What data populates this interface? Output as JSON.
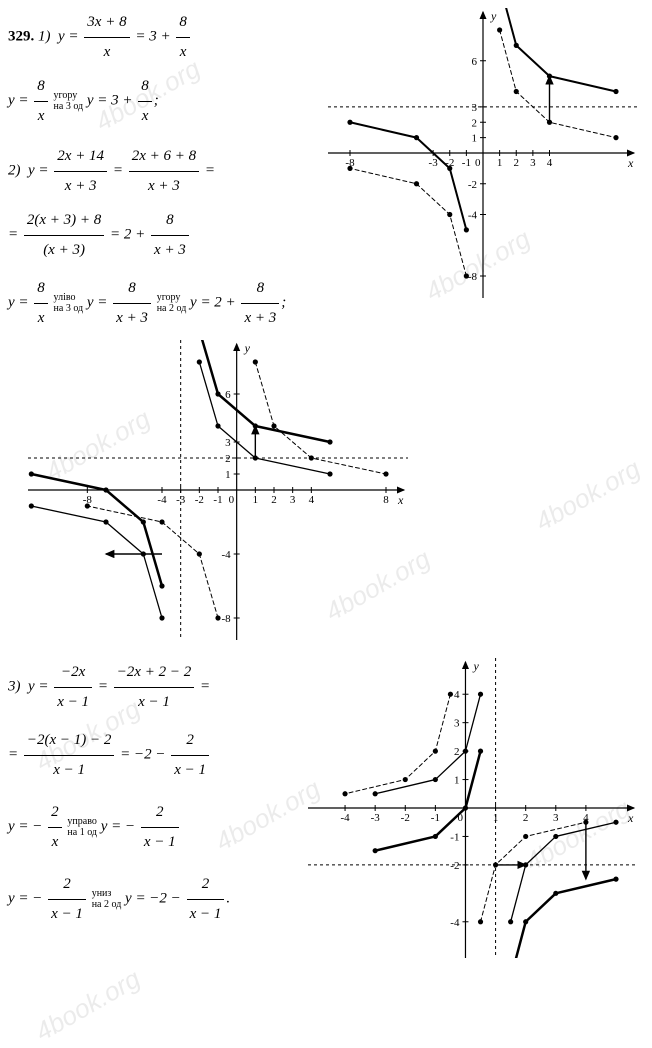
{
  "problem_number": "329.",
  "p1": {
    "line1_a": "1)",
    "eq1_lhs_y": "y",
    "eq1_frac1_num": "3x + 8",
    "eq1_frac1_den": "x",
    "eq1_mid": "= 3 +",
    "eq1_frac2_num": "8",
    "eq1_frac2_den": "x",
    "line2_y": "y =",
    "line2_f1_num": "8",
    "line2_f1_den": "x",
    "line2_annot": "угору\nна 3 од",
    "line2_rhs_y": "y = 3 +",
    "line2_f2_num": "8",
    "line2_f2_den": "x",
    "semicolon": ";"
  },
  "p2": {
    "label": "2)",
    "eq_y": "y =",
    "f1_num": "2x + 14",
    "f1_den": "x + 3",
    "eq_eq": "=",
    "f2_num": "2x + 6 + 8",
    "f2_den": "x + 3",
    "line2_eq": "=",
    "f3_num": "2(x + 3) + 8",
    "f3_den": "(x + 3)",
    "line2_rhs": "= 2 +",
    "f4_num": "8",
    "f4_den": "x + 3",
    "chain_y1": "y =",
    "c_f1_num": "8",
    "c_f1_den": "x",
    "c_annot1": "уліво\nна 3 од",
    "chain_y2": "y =",
    "c_f2_num": "8",
    "c_f2_den": "x + 3",
    "c_annot2": "угору\nна 2 од",
    "chain_y3": "y = 2 +",
    "c_f3_num": "8",
    "c_f3_den": "x + 3",
    "semicolon": ";"
  },
  "p3": {
    "label": "3)",
    "eq_y": "y =",
    "f1_num": "−2x",
    "f1_den": "x − 1",
    "eq_eq": "=",
    "f2_num": "−2x + 2 − 2",
    "f2_den": "x − 1",
    "line2_eq": "=",
    "f3_num": "−2(x − 1) − 2",
    "f3_den": "x − 1",
    "line2_rhs": "= −2 −",
    "f4_num": "2",
    "f4_den": "x − 1",
    "chain_y1": "y = −",
    "c_f1_num": "2",
    "c_f1_den": "x",
    "c_annot1": "управо\nна 1 од",
    "chain_y2": "y = −",
    "c_f2_num": "2",
    "c_f2_den": "x − 1",
    "chain_y3": "y = −",
    "c2_f1_num": "2",
    "c2_f1_den": "x − 1",
    "c_annot2": "униз\nна 2 од",
    "chain_y4": "y = −2 −",
    "c2_f2_num": "2",
    "c2_f2_den": "x − 1",
    "period": "."
  },
  "chart1": {
    "type": "hyperbola-shift",
    "xlim": [
      -8,
      8
    ],
    "ylim": [
      -8,
      8
    ],
    "xticks": [
      -8,
      -3,
      -2,
      -1,
      1,
      2,
      3,
      4
    ],
    "yticks": [
      -8,
      -4,
      -2,
      1,
      2,
      3,
      6
    ],
    "axis_color": "#000000",
    "grid_color": "#e5e5e5",
    "background_color": "#ffffff",
    "asymptote_h_y": 3,
    "asymptote_style": "dashed",
    "curves": [
      {
        "name": "8/x",
        "style": "dashed",
        "color": "#000000",
        "width": 1,
        "branches": [
          [
            [
              1,
              8
            ],
            [
              2,
              4
            ],
            [
              4,
              2
            ],
            [
              8,
              1
            ]
          ],
          [
            [
              -1,
              -8
            ],
            [
              -2,
              -4
            ],
            [
              -4,
              -2
            ],
            [
              -8,
              -1
            ]
          ]
        ],
        "markers": true
      },
      {
        "name": "3+8/x",
        "style": "solid",
        "color": "#000000",
        "width": 2,
        "branches": [
          [
            [
              1,
              11
            ],
            [
              2,
              7
            ],
            [
              4,
              5
            ],
            [
              8,
              4
            ]
          ],
          [
            [
              -1,
              -5
            ],
            [
              -2,
              -1
            ],
            [
              -4,
              1
            ],
            [
              -8,
              2
            ]
          ]
        ],
        "markers": true
      }
    ],
    "arrows": [
      {
        "from": [
          4,
          2
        ],
        "to": [
          4,
          5
        ]
      }
    ],
    "x_label": "x",
    "y_label": "y",
    "origin_label": "0",
    "font_size": 11
  },
  "chart2": {
    "type": "hyperbola-shift",
    "xlim": [
      -10,
      8
    ],
    "ylim": [
      -8,
      8
    ],
    "xticks": [
      -8,
      -4,
      -3,
      -2,
      -1,
      1,
      2,
      3,
      4,
      8
    ],
    "yticks": [
      -8,
      -4,
      1,
      2,
      3,
      6
    ],
    "axis_color": "#000000",
    "background_color": "#ffffff",
    "asymptote_v_x": -3,
    "asymptote_h_y": 2,
    "asymptote_style": "dashed",
    "curves": [
      {
        "name": "8/x",
        "style": "dashed",
        "color": "#000000",
        "width": 1,
        "branches": [
          [
            [
              1,
              8
            ],
            [
              2,
              4
            ],
            [
              4,
              2
            ],
            [
              8,
              1
            ]
          ],
          [
            [
              -1,
              -8
            ],
            [
              -2,
              -4
            ],
            [
              -4,
              -2
            ],
            [
              -8,
              -1
            ]
          ]
        ],
        "markers": true
      },
      {
        "name": "8/(x+3)",
        "style": "solid",
        "color": "#000000",
        "width": 1.3,
        "branches": [
          [
            [
              -2,
              8
            ],
            [
              -1,
              4
            ],
            [
              1,
              2
            ],
            [
              5,
              1
            ]
          ],
          [
            [
              -4,
              -8
            ],
            [
              -5,
              -4
            ],
            [
              -7,
              -2
            ],
            [
              -11,
              -1
            ]
          ]
        ],
        "markers": true
      },
      {
        "name": "2+8/(x+3)",
        "style": "solid",
        "color": "#000000",
        "width": 2.5,
        "branches": [
          [
            [
              -2,
              10
            ],
            [
              -1,
              6
            ],
            [
              1,
              4
            ],
            [
              5,
              3
            ]
          ],
          [
            [
              -4,
              -6
            ],
            [
              -5,
              -2
            ],
            [
              -7,
              0
            ],
            [
              -11,
              1
            ]
          ]
        ],
        "markers": true
      }
    ],
    "arrows": [
      {
        "from": [
          -4,
          -4
        ],
        "to": [
          -7,
          -4
        ]
      },
      {
        "from": [
          1,
          2
        ],
        "to": [
          1,
          4
        ]
      }
    ],
    "x_label": "x",
    "y_label": "y",
    "origin_label": "0",
    "font_size": 11
  },
  "chart3": {
    "type": "hyperbola-shift",
    "xlim": [
      -4.5,
      5
    ],
    "ylim": [
      -4.5,
      4.5
    ],
    "xticks": [
      -4,
      -3,
      -2,
      -1,
      1,
      2,
      3,
      4
    ],
    "yticks": [
      -4,
      -2,
      -1,
      1,
      2,
      3,
      4
    ],
    "axis_color": "#000000",
    "background_color": "#ffffff",
    "asymptote_v_x": 1,
    "asymptote_h_y": -2,
    "asymptote_style": "dashed",
    "curves": [
      {
        "name": "-2/x",
        "style": "dashed",
        "color": "#000000",
        "width": 1,
        "branches": [
          [
            [
              -0.5,
              4
            ],
            [
              -1,
              2
            ],
            [
              -2,
              1
            ],
            [
              -4,
              0.5
            ]
          ],
          [
            [
              0.5,
              -4
            ],
            [
              1,
              -2
            ],
            [
              2,
              -1
            ],
            [
              4,
              -0.5
            ]
          ]
        ],
        "markers": true
      },
      {
        "name": "-2/(x-1)",
        "style": "solid",
        "color": "#000000",
        "width": 1.3,
        "branches": [
          [
            [
              0.5,
              4
            ],
            [
              0,
              2
            ],
            [
              -1,
              1
            ],
            [
              -3,
              0.5
            ]
          ],
          [
            [
              1.5,
              -4
            ],
            [
              2,
              -2
            ],
            [
              3,
              -1
            ],
            [
              5,
              -0.5
            ]
          ]
        ],
        "markers": true
      },
      {
        "name": "-2-2/(x-1)",
        "style": "solid",
        "color": "#000000",
        "width": 2.5,
        "branches": [
          [
            [
              0.5,
              2
            ],
            [
              0,
              0
            ],
            [
              -1,
              -1
            ],
            [
              -3,
              -1.5
            ]
          ],
          [
            [
              1.5,
              -6
            ],
            [
              2,
              -4
            ],
            [
              3,
              -3
            ],
            [
              5,
              -2.5
            ]
          ]
        ],
        "markers": true
      }
    ],
    "arrows": [
      {
        "from": [
          1,
          -2
        ],
        "to": [
          2,
          -2
        ]
      },
      {
        "from": [
          4,
          -0.5
        ],
        "to": [
          4,
          -2.5
        ]
      }
    ],
    "x_label": "x",
    "y_label": "y",
    "origin_label": "0",
    "font_size": 11
  }
}
